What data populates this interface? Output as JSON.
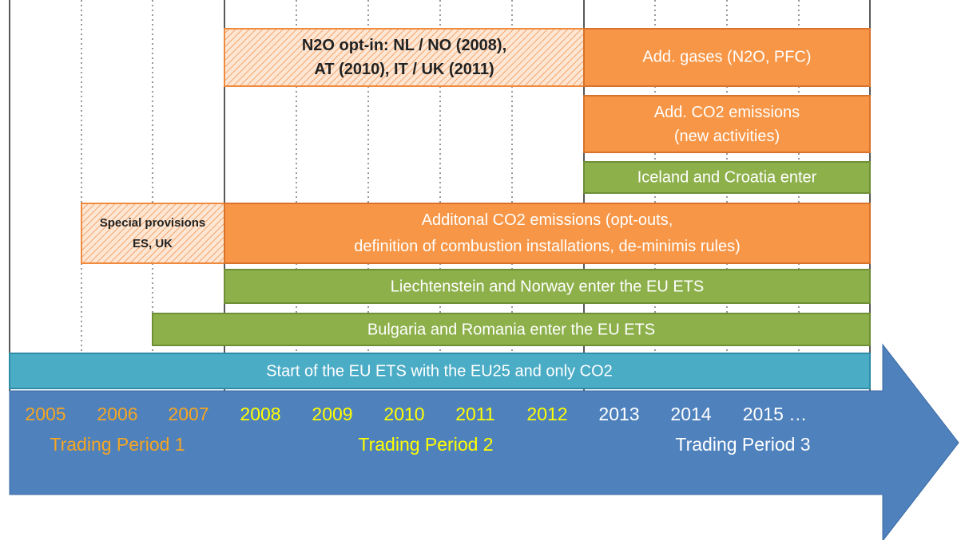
{
  "bars": [
    {
      "lines": [
        "N2O opt-in: NL / NO (2008),",
        "AT (2010), IT / UK (2011)"
      ]
    },
    {
      "lines": [
        "Add. gases (N2O, PFC)"
      ]
    },
    {
      "lines": [
        "Add. CO2 emissions",
        "(new activities)"
      ]
    },
    {
      "lines": [
        "Iceland and Croatia enter"
      ]
    },
    {
      "lines": [
        "Special provisions",
        "ES, UK"
      ]
    },
    {
      "lines": [
        "Additonal CO2 emissions (opt-outs,",
        "definition of combustion installations, de-minimis rules)"
      ]
    },
    {
      "lines": [
        "Liechtenstein and Norway enter the EU ETS"
      ]
    },
    {
      "lines": [
        "Bulgaria and Romania enter the EU ETS"
      ]
    },
    {
      "lines": [
        "Start of the EU ETS with the EU25 and only CO2"
      ]
    }
  ],
  "years": [
    "2005",
    "2006",
    "2007",
    "2008",
    "2009",
    "2010",
    "2011",
    "2012",
    "2013",
    "2014",
    "2015 …"
  ],
  "periods": [
    "Trading Period  1",
    "Trading Period 2",
    "Trading Period 3"
  ]
}
